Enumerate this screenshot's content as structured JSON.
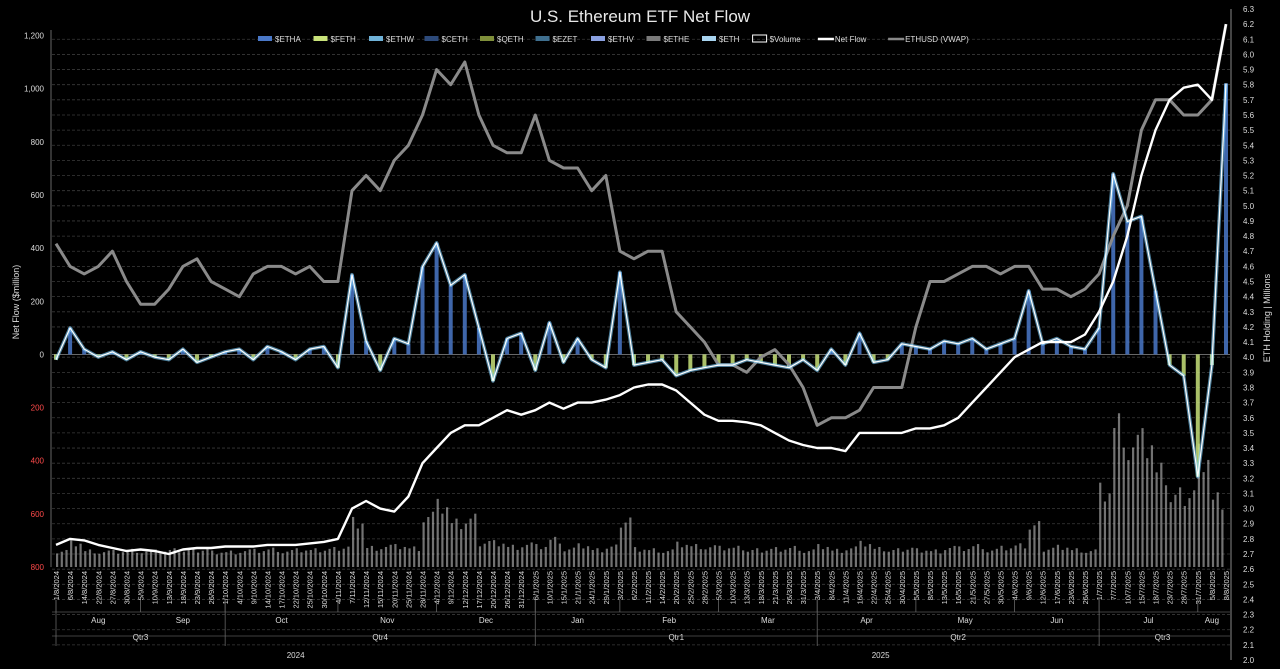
{
  "chart_data": {
    "type": "line",
    "title": "U.S. Ethereum ETF Net Flow",
    "ylabel_left": "Net Flow ($million)",
    "ylabel_right": "ETH Holding | Millions",
    "left_axis": {
      "ylim": [
        -800,
        1300
      ],
      "ticks": [
        "1,200",
        "1,000",
        "800",
        "600",
        "400",
        "200",
        "0",
        "200",
        "400",
        "600",
        "800"
      ],
      "tick_values": [
        1200,
        1000,
        800,
        600,
        400,
        200,
        0,
        -200,
        -400,
        -600,
        -800
      ],
      "negative_color": "#ff4a4a"
    },
    "right_axis": {
      "ylim": [
        2.0,
        6.3
      ],
      "ticks": [
        "6.3",
        "6.2",
        "6.1",
        "6.0",
        "5.9",
        "5.8",
        "5.7",
        "5.6",
        "5.5",
        "5.4",
        "5.3",
        "5.2",
        "5.1",
        "5.0",
        "4.9",
        "4.8",
        "4.7",
        "4.6",
        "4.5",
        "4.4",
        "4.3",
        "4.2",
        "4.1",
        "4.0",
        "3.9",
        "3.8",
        "3.7",
        "3.6",
        "3.5",
        "3.4",
        "3.3",
        "3.2",
        "3.1",
        "3.0",
        "2.9",
        "2.8",
        "2.7",
        "2.6",
        "2.5",
        "2.4",
        "2.3",
        "2.2",
        "2.1",
        "2.0"
      ]
    },
    "grid": true,
    "legend_position": "top",
    "legend": [
      {
        "name": "$ETHA",
        "kind": "bar",
        "color": "#4a78c8"
      },
      {
        "name": "$FETH",
        "kind": "bar",
        "color": "#c8e27a"
      },
      {
        "name": "$ETHW",
        "kind": "bar",
        "color": "#6fb2d8"
      },
      {
        "name": "$CETH",
        "kind": "bar",
        "color": "#2d4a7a"
      },
      {
        "name": "$QETH",
        "kind": "bar",
        "color": "#7f8f3a"
      },
      {
        "name": "$EZET",
        "kind": "bar",
        "color": "#3f6f8f"
      },
      {
        "name": "$ETHV",
        "kind": "bar",
        "color": "#8aa0e0"
      },
      {
        "name": "$ETHE",
        "kind": "bar",
        "color": "#7a7a7a"
      },
      {
        "name": "$ETH",
        "kind": "bar",
        "color": "#a8d4f0"
      },
      {
        "name": "$Volume",
        "kind": "box",
        "color": "#ffffff"
      },
      {
        "name": "Net Flow",
        "kind": "line",
        "color": "#ffffff"
      },
      {
        "name": "ETHUSD (VWAP)",
        "kind": "line",
        "color": "#888888"
      }
    ],
    "x_dates": [
      "1/8/2024",
      "6/8/2024",
      "14/8/2024",
      "22/8/2024",
      "27/8/2024",
      "30/8/2024",
      "5/9/2024",
      "10/9/2024",
      "13/9/2024",
      "18/9/2024",
      "23/9/2024",
      "26/9/2024",
      "1/10/2024",
      "4/10/2024",
      "9/10/2024",
      "14/10/2024",
      "17/10/2024",
      "22/10/2024",
      "25/10/2024",
      "30/10/2024",
      "4/11/2024",
      "7/11/2024",
      "12/11/2024",
      "15/11/2024",
      "20/11/2024",
      "25/11/2024",
      "28/11/2024",
      "4/12/2024",
      "9/12/2024",
      "12/12/2024",
      "17/12/2024",
      "20/12/2024",
      "26/12/2024",
      "31/12/2024",
      "6/1/2025",
      "10/1/2025",
      "15/1/2025",
      "21/1/2025",
      "24/1/2025",
      "29/1/2025",
      "3/2/2025",
      "6/2/2025",
      "11/2/2025",
      "14/2/2025",
      "20/2/2025",
      "25/2/2025",
      "28/2/2025",
      "5/3/2025",
      "10/3/2025",
      "13/3/2025",
      "18/3/2025",
      "21/3/2025",
      "26/3/2025",
      "31/3/2025",
      "3/4/2025",
      "8/4/2025",
      "11/4/2025",
      "16/4/2025",
      "22/4/2025",
      "25/4/2025",
      "30/4/2025",
      "5/5/2025",
      "8/5/2025",
      "13/5/2025",
      "16/5/2025",
      "21/5/2025",
      "27/5/2025",
      "30/5/2025",
      "4/6/2025",
      "9/6/2025",
      "12/6/2025",
      "17/6/2025",
      "23/6/2025",
      "26/6/2025",
      "1/7/2025",
      "7/7/2025",
      "10/7/2025",
      "15/7/2025",
      "18/7/2025",
      "23/7/2025",
      "28/7/2025",
      "31/7/2025",
      "5/8/2025",
      "8/8/2025"
    ],
    "months": [
      "Aug",
      "Sep",
      "Oct",
      "Nov",
      "Dec",
      "Jan",
      "Feb",
      "Mar",
      "Apr",
      "May",
      "Jun",
      "Jul",
      "Aug"
    ],
    "quarters": [
      "Qtr3",
      "Qtr4",
      "Qtr1",
      "Qtr2",
      "Qtr3"
    ],
    "years": [
      "2024",
      "2025"
    ],
    "ethusd_vwap_approx": [
      2.75,
      2.6,
      2.55,
      2.6,
      2.7,
      2.5,
      2.35,
      2.35,
      2.45,
      2.6,
      2.65,
      2.5,
      2.45,
      2.4,
      2.55,
      2.6,
      2.6,
      2.55,
      2.6,
      2.5,
      2.5,
      3.1,
      3.2,
      3.1,
      3.3,
      3.4,
      3.6,
      3.9,
      3.8,
      3.95,
      3.6,
      3.4,
      3.35,
      3.35,
      3.6,
      3.3,
      3.25,
      3.25,
      3.1,
      3.2,
      2.7,
      2.65,
      2.7,
      2.7,
      2.3,
      2.2,
      2.1,
      1.95,
      1.95,
      1.9,
      2.0,
      2.05,
      1.95,
      1.8,
      1.55,
      1.6,
      1.6,
      1.65,
      1.8,
      1.8,
      1.8,
      2.2,
      2.5,
      2.5,
      2.55,
      2.6,
      2.6,
      2.55,
      2.6,
      2.6,
      2.45,
      2.45,
      2.4,
      2.45,
      2.55,
      2.8,
      3.0,
      3.5,
      3.7,
      3.7,
      3.6,
      3.6,
      3.7,
      4.2
    ],
    "net_flow_approx": [
      -20,
      100,
      20,
      -10,
      10,
      -20,
      10,
      -10,
      -20,
      20,
      -30,
      -10,
      10,
      20,
      -20,
      30,
      10,
      -20,
      20,
      30,
      -50,
      300,
      50,
      -60,
      60,
      40,
      330,
      420,
      260,
      300,
      100,
      -100,
      60,
      80,
      -60,
      120,
      -30,
      60,
      -20,
      -50,
      310,
      -40,
      -30,
      -20,
      -80,
      -60,
      -50,
      -40,
      -40,
      -20,
      -30,
      -40,
      -50,
      -20,
      -60,
      20,
      -40,
      80,
      -30,
      -20,
      40,
      30,
      20,
      50,
      40,
      60,
      20,
      40,
      60,
      240,
      40,
      60,
      30,
      20,
      100,
      680,
      500,
      520,
      240,
      -40,
      -80,
      -460,
      -40,
      1020
    ],
    "eth_holding_approx": [
      2.76,
      2.8,
      2.79,
      2.76,
      2.74,
      2.72,
      2.73,
      2.72,
      2.7,
      2.73,
      2.74,
      2.74,
      2.75,
      2.75,
      2.75,
      2.76,
      2.76,
      2.76,
      2.77,
      2.78,
      2.8,
      3.0,
      3.05,
      3.0,
      2.98,
      3.08,
      3.3,
      3.4,
      3.5,
      3.55,
      3.55,
      3.6,
      3.65,
      3.62,
      3.65,
      3.7,
      3.66,
      3.7,
      3.7,
      3.72,
      3.75,
      3.8,
      3.82,
      3.82,
      3.78,
      3.7,
      3.62,
      3.58,
      3.58,
      3.57,
      3.55,
      3.5,
      3.45,
      3.42,
      3.4,
      3.4,
      3.38,
      3.5,
      3.5,
      3.5,
      3.5,
      3.53,
      3.53,
      3.55,
      3.6,
      3.7,
      3.8,
      3.9,
      4.0,
      4.05,
      4.1,
      4.1,
      4.1,
      4.15,
      4.3,
      4.5,
      4.8,
      5.2,
      5.5,
      5.7,
      5.78,
      5.8,
      5.7,
      6.2
    ]
  }
}
